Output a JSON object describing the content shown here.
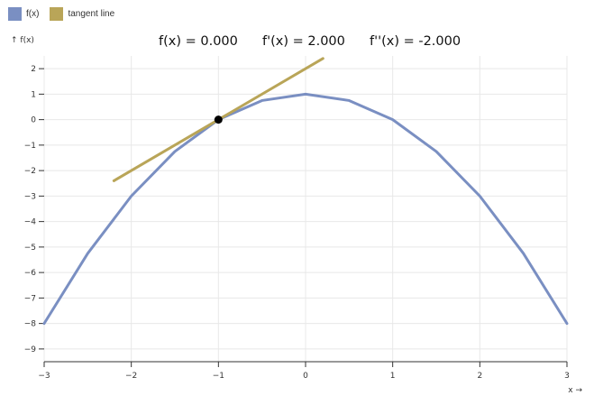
{
  "legend": {
    "items": [
      {
        "label": "f(x)",
        "color": "#7a8fc2"
      },
      {
        "label": "tangent line",
        "color": "#b9a558"
      }
    ]
  },
  "readouts": {
    "f": "f(x) = 0.000",
    "df": "f'(x) = 2.000",
    "ddf": "f''(x) = -2.000"
  },
  "chart_data": {
    "type": "line",
    "title": "",
    "xlabel": "x →",
    "ylabel": "↑ f(x)",
    "xlim": [
      -3,
      3
    ],
    "ylim": [
      -9.5,
      2.5
    ],
    "x_ticks": [
      -3,
      -2,
      -1,
      0,
      1,
      2,
      3
    ],
    "y_ticks": [
      2,
      1,
      0,
      -1,
      -2,
      -3,
      -4,
      -5,
      -6,
      -7,
      -8,
      -9
    ],
    "x_tick_labels": [
      "−3",
      "−2",
      "−1",
      "0",
      "1",
      "2",
      "3"
    ],
    "y_tick_labels": [
      "2",
      "1",
      "0",
      "−1",
      "−2",
      "−3",
      "−4",
      "−5",
      "−6",
      "−7",
      "−8",
      "−9"
    ],
    "grid": true,
    "legend_position": "top-left",
    "series": [
      {
        "name": "f(x)",
        "color": "#7a8fc2",
        "x": [
          -3,
          -2.5,
          -2,
          -1.5,
          -1,
          -0.5,
          0,
          0.5,
          1,
          1.5,
          2,
          2.5,
          3
        ],
        "y": [
          -8,
          -5.25,
          -3,
          -1.25,
          0,
          0.75,
          1,
          0.75,
          0,
          -1.25,
          -3,
          -5.25,
          -8
        ]
      },
      {
        "name": "tangent line",
        "color": "#b9a558",
        "x": [
          -2.2,
          0.2
        ],
        "y": [
          -2.4,
          2.4
        ]
      }
    ],
    "point": {
      "x": -1,
      "y": 0,
      "color": "#000000"
    }
  }
}
